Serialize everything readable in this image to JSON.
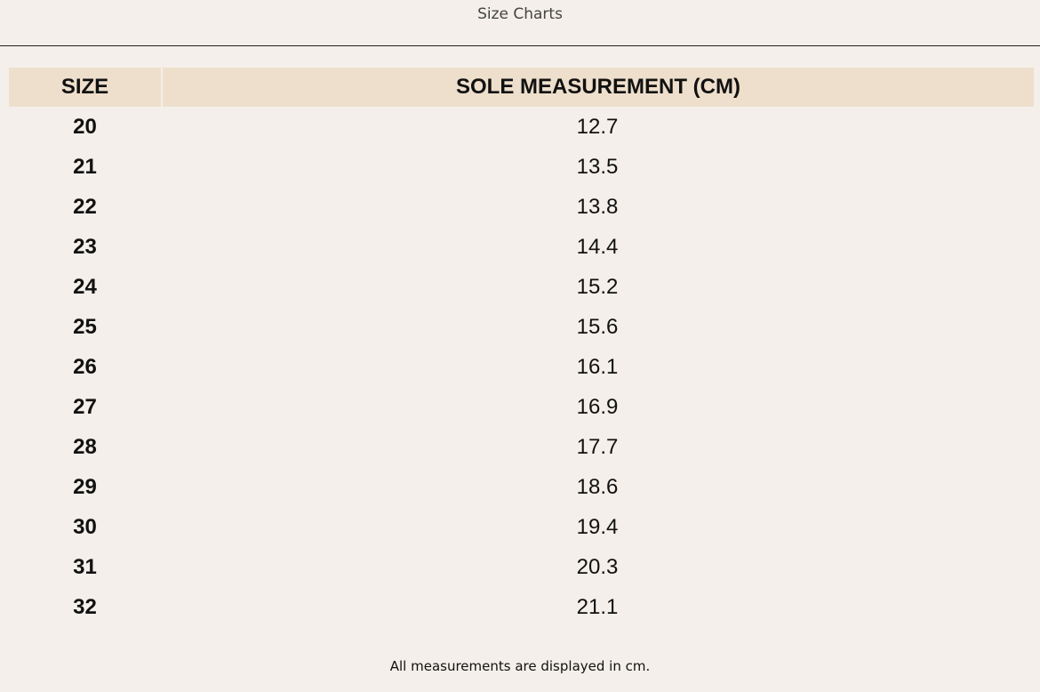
{
  "header": {
    "title": "Size Charts"
  },
  "table": {
    "columns": [
      "SIZE",
      "SOLE MEASUREMENT (CM)"
    ],
    "rows": [
      [
        "20",
        "12.7"
      ],
      [
        "21",
        "13.5"
      ],
      [
        "22",
        "13.8"
      ],
      [
        "23",
        "14.4"
      ],
      [
        "24",
        "15.2"
      ],
      [
        "25",
        "15.6"
      ],
      [
        "26",
        "16.1"
      ],
      [
        "27",
        "16.9"
      ],
      [
        "28",
        "17.7"
      ],
      [
        "29",
        "18.6"
      ],
      [
        "30",
        "19.4"
      ],
      [
        "31",
        "20.3"
      ],
      [
        "32",
        "21.1"
      ]
    ]
  },
  "footer": {
    "note": "All measurements are displayed in cm."
  }
}
